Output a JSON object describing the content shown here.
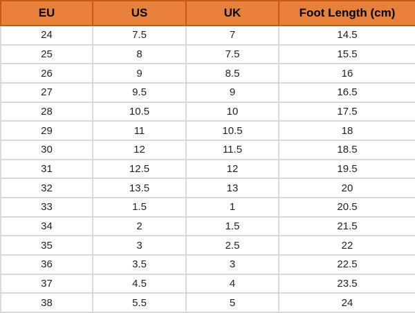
{
  "chart_data": {
    "type": "table",
    "columns": [
      "EU",
      "US",
      "UK",
      "Foot Length (cm)"
    ],
    "rows": [
      [
        "24",
        "7.5",
        "7",
        "14.5"
      ],
      [
        "25",
        "8",
        "7.5",
        "15.5"
      ],
      [
        "26",
        "9",
        "8.5",
        "16"
      ],
      [
        "27",
        "9.5",
        "9",
        "16.5"
      ],
      [
        "28",
        "10.5",
        "10",
        "17.5"
      ],
      [
        "29",
        "11",
        "10.5",
        "18"
      ],
      [
        "30",
        "12",
        "11.5",
        "18.5"
      ],
      [
        "31",
        "12.5",
        "12",
        "19.5"
      ],
      [
        "32",
        "13.5",
        "13",
        "20"
      ],
      [
        "33",
        "1.5",
        "1",
        "20.5"
      ],
      [
        "34",
        "2",
        "1.5",
        "21.5"
      ],
      [
        "35",
        "3",
        "2.5",
        "22"
      ],
      [
        "36",
        "3.5",
        "3",
        "22.5"
      ],
      [
        "37",
        "4.5",
        "4",
        "23.5"
      ],
      [
        "38",
        "5.5",
        "5",
        "24"
      ]
    ]
  },
  "colors": {
    "header_bg": "#E8813C",
    "header_border": "#C55A11",
    "grid_line": "#D9D9D9",
    "header_text": "#000000",
    "body_text": "#1F1F1F",
    "body_bg": "#FFFFFF"
  }
}
